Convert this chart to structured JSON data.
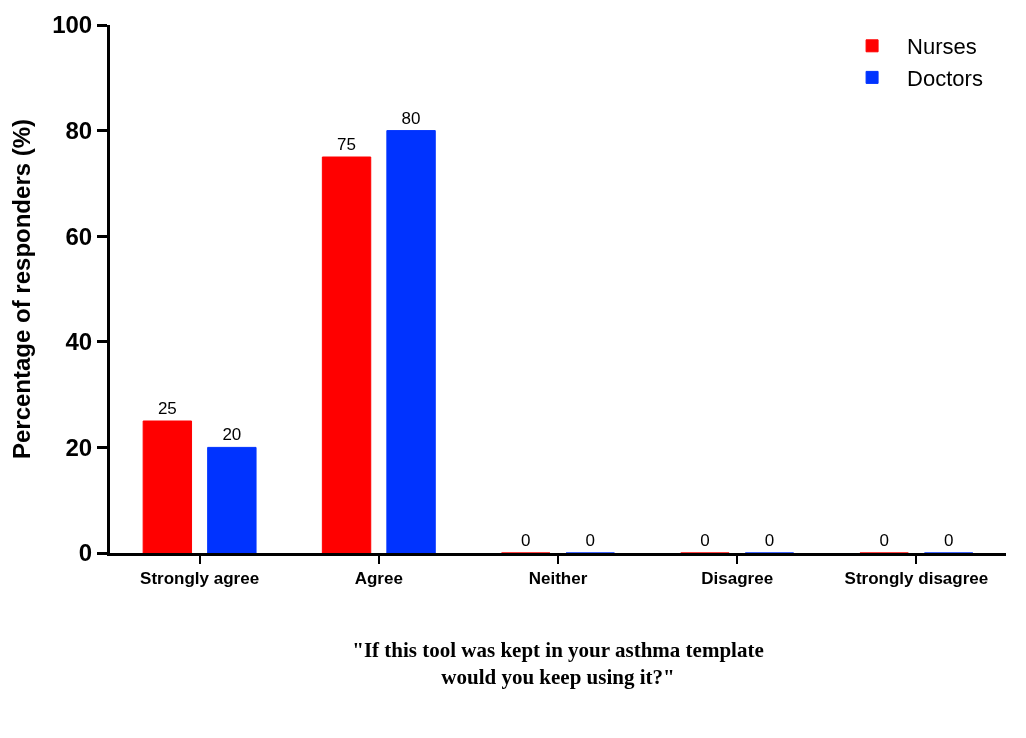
{
  "chart_data": {
    "type": "bar",
    "categories": [
      "Strongly agree",
      "Agree",
      "Neither",
      "Disagree",
      "Strongly disagree"
    ],
    "series": [
      {
        "name": "Nurses",
        "color": "#ff0000",
        "values": [
          25,
          75,
          0,
          0,
          0
        ]
      },
      {
        "name": "Doctors",
        "color": "#0033ff",
        "values": [
          20,
          80,
          0,
          0,
          0
        ]
      }
    ],
    "ylabel": "Percentage of responders (%)",
    "xlabel": "\"If this tool was kept in your asthma template\nwould you keep using it?\"",
    "ylim": [
      0,
      100
    ],
    "yticks": [
      0,
      20,
      40,
      60,
      80,
      100
    ],
    "data_labels": true,
    "legend": "top right"
  }
}
